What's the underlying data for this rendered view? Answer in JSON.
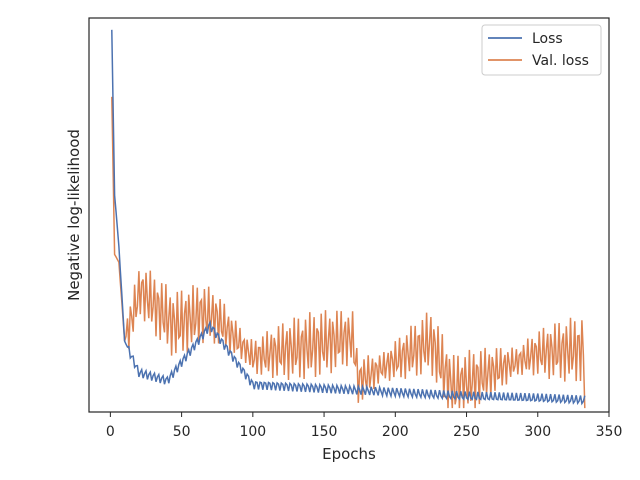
{
  "chart_data": {
    "type": "line",
    "xlabel": "Epochs",
    "ylabel": "Negative log-likelihood",
    "xlim": [
      -15,
      350
    ],
    "ylim": [
      0,
      1
    ],
    "x_ticks": [
      0,
      50,
      100,
      150,
      200,
      250,
      300,
      350
    ],
    "y_ticks_shown": false,
    "legend_position": "top-right",
    "series": [
      {
        "name": "Loss",
        "color": "#4c72b0"
      },
      {
        "name": "Val. loss",
        "color": "#dd8452"
      }
    ],
    "key_points": {
      "Loss": [
        [
          1,
          0.97
        ],
        [
          3,
          0.55
        ],
        [
          6,
          0.42
        ],
        [
          10,
          0.18
        ],
        [
          20,
          0.1
        ],
        [
          40,
          0.08
        ],
        [
          70,
          0.22
        ],
        [
          100,
          0.07
        ],
        [
          150,
          0.06
        ],
        [
          200,
          0.05
        ],
        [
          250,
          0.04
        ],
        [
          300,
          0.035
        ],
        [
          333,
          0.03
        ]
      ],
      "Val. loss": [
        [
          1,
          0.8
        ],
        [
          3,
          0.4
        ],
        [
          6,
          0.38
        ],
        [
          10,
          0.18
        ],
        [
          21,
          0.31
        ],
        [
          45,
          0.22
        ],
        [
          64,
          0.25
        ],
        [
          74,
          0.24
        ],
        [
          100,
          0.14
        ],
        [
          170,
          0.19
        ],
        [
          174,
          0.08
        ],
        [
          225,
          0.18
        ],
        [
          240,
          0.06
        ],
        [
          300,
          0.15
        ],
        [
          332,
          0.16
        ],
        [
          333,
          0.05
        ]
      ]
    }
  }
}
